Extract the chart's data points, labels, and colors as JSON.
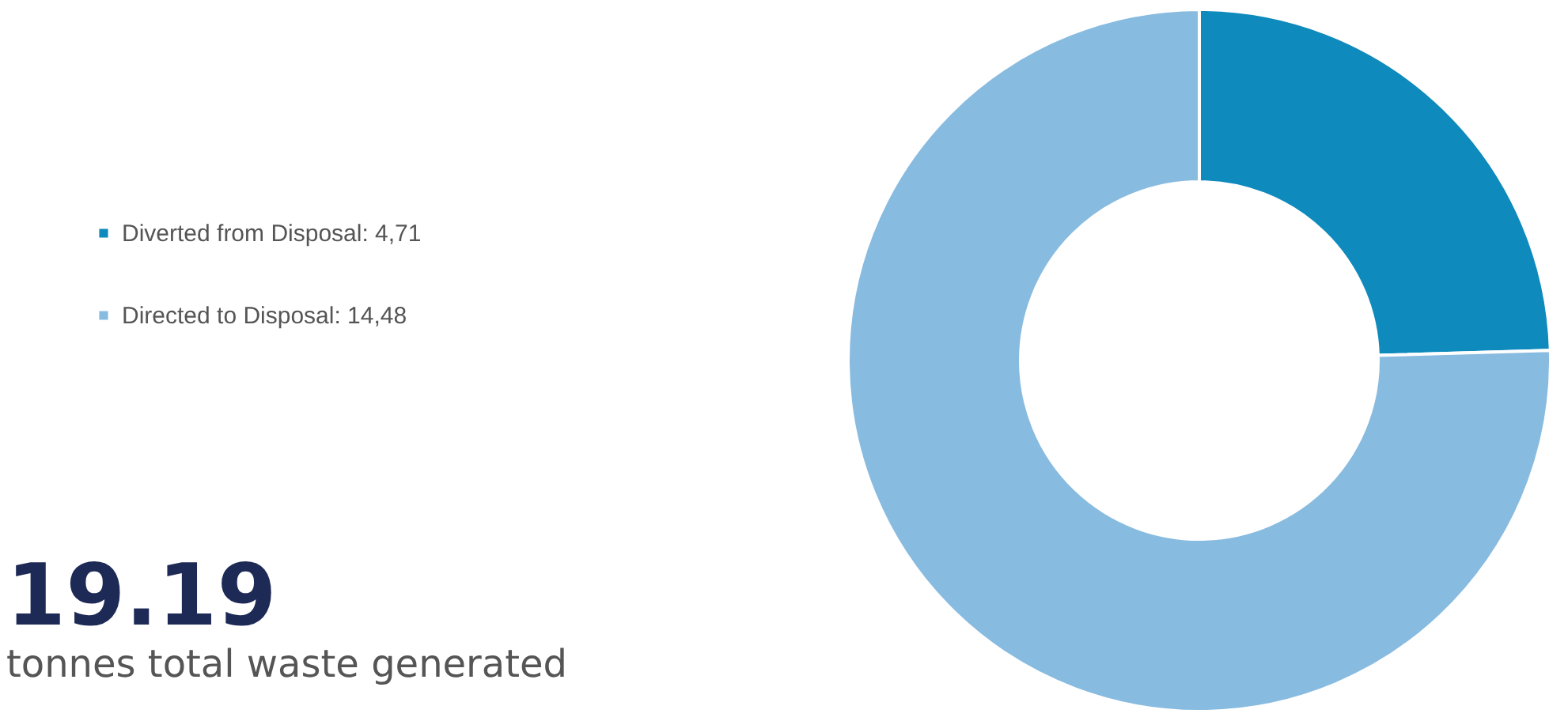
{
  "chart_data": {
    "type": "donut",
    "categories": [
      "Diverted from Disposal",
      "Directed to Disposal"
    ],
    "values": [
      4.71,
      14.48
    ],
    "value_labels": [
      "4,71",
      "14,48"
    ],
    "colors": [
      "#0e8abc",
      "#88bbe0"
    ],
    "legend": "left",
    "annotations": [
      "19.19",
      "tonnes total waste generated"
    ]
  }
}
